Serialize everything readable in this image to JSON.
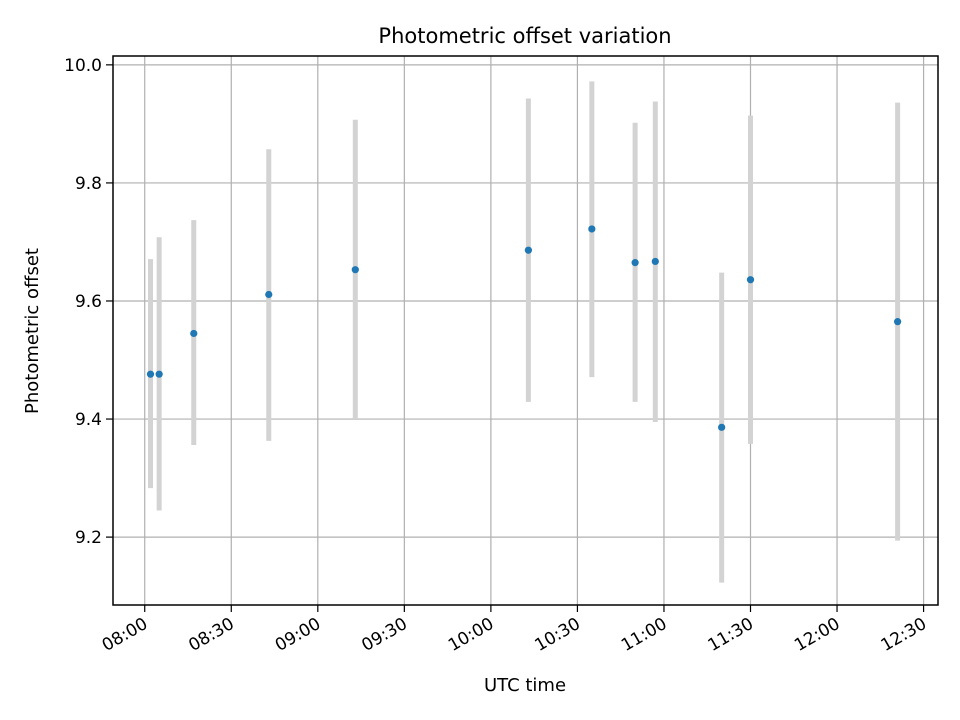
{
  "chart_data": {
    "type": "scatter",
    "title": "Photometric offset variation",
    "xlabel": "UTC time",
    "ylabel": "Photometric offset",
    "xlim": [
      "07:49",
      "12:35"
    ],
    "ylim": [
      9.085,
      10.015
    ],
    "x_ticks": [
      "08:00",
      "08:30",
      "09:00",
      "09:30",
      "10:00",
      "10:30",
      "11:00",
      "11:30",
      "12:00",
      "12:30"
    ],
    "y_ticks": [
      9.2,
      9.4,
      9.6,
      9.8,
      10.0
    ],
    "y_tick_labels": [
      "9.2",
      "9.4",
      "9.6",
      "9.8",
      "10.0"
    ],
    "grid": true,
    "point_color": "#1f77b4",
    "errorbar_color": "#d3d3d3",
    "series": [
      {
        "points": [
          {
            "time": "08:02",
            "value": 9.476,
            "err_low": 9.283,
            "err_high": 9.671
          },
          {
            "time": "08:05",
            "value": 9.476,
            "err_low": 9.245,
            "err_high": 9.708
          },
          {
            "time": "08:17",
            "value": 9.545,
            "err_low": 9.356,
            "err_high": 9.737
          },
          {
            "time": "08:43",
            "value": 9.611,
            "err_low": 9.363,
            "err_high": 9.857
          },
          {
            "time": "09:13",
            "value": 9.653,
            "err_low": 9.4,
            "err_high": 9.907
          },
          {
            "time": "10:13",
            "value": 9.686,
            "err_low": 9.429,
            "err_high": 9.943
          },
          {
            "time": "10:35",
            "value": 9.722,
            "err_low": 9.471,
            "err_high": 9.972
          },
          {
            "time": "10:50",
            "value": 9.665,
            "err_low": 9.429,
            "err_high": 9.902
          },
          {
            "time": "10:57",
            "value": 9.667,
            "err_low": 9.395,
            "err_high": 9.938
          },
          {
            "time": "11:20",
            "value": 9.386,
            "err_low": 9.123,
            "err_high": 9.648
          },
          {
            "time": "11:30",
            "value": 9.636,
            "err_low": 9.358,
            "err_high": 9.914
          },
          {
            "time": "12:21",
            "value": 9.565,
            "err_low": 9.194,
            "err_high": 9.936
          }
        ]
      }
    ]
  }
}
